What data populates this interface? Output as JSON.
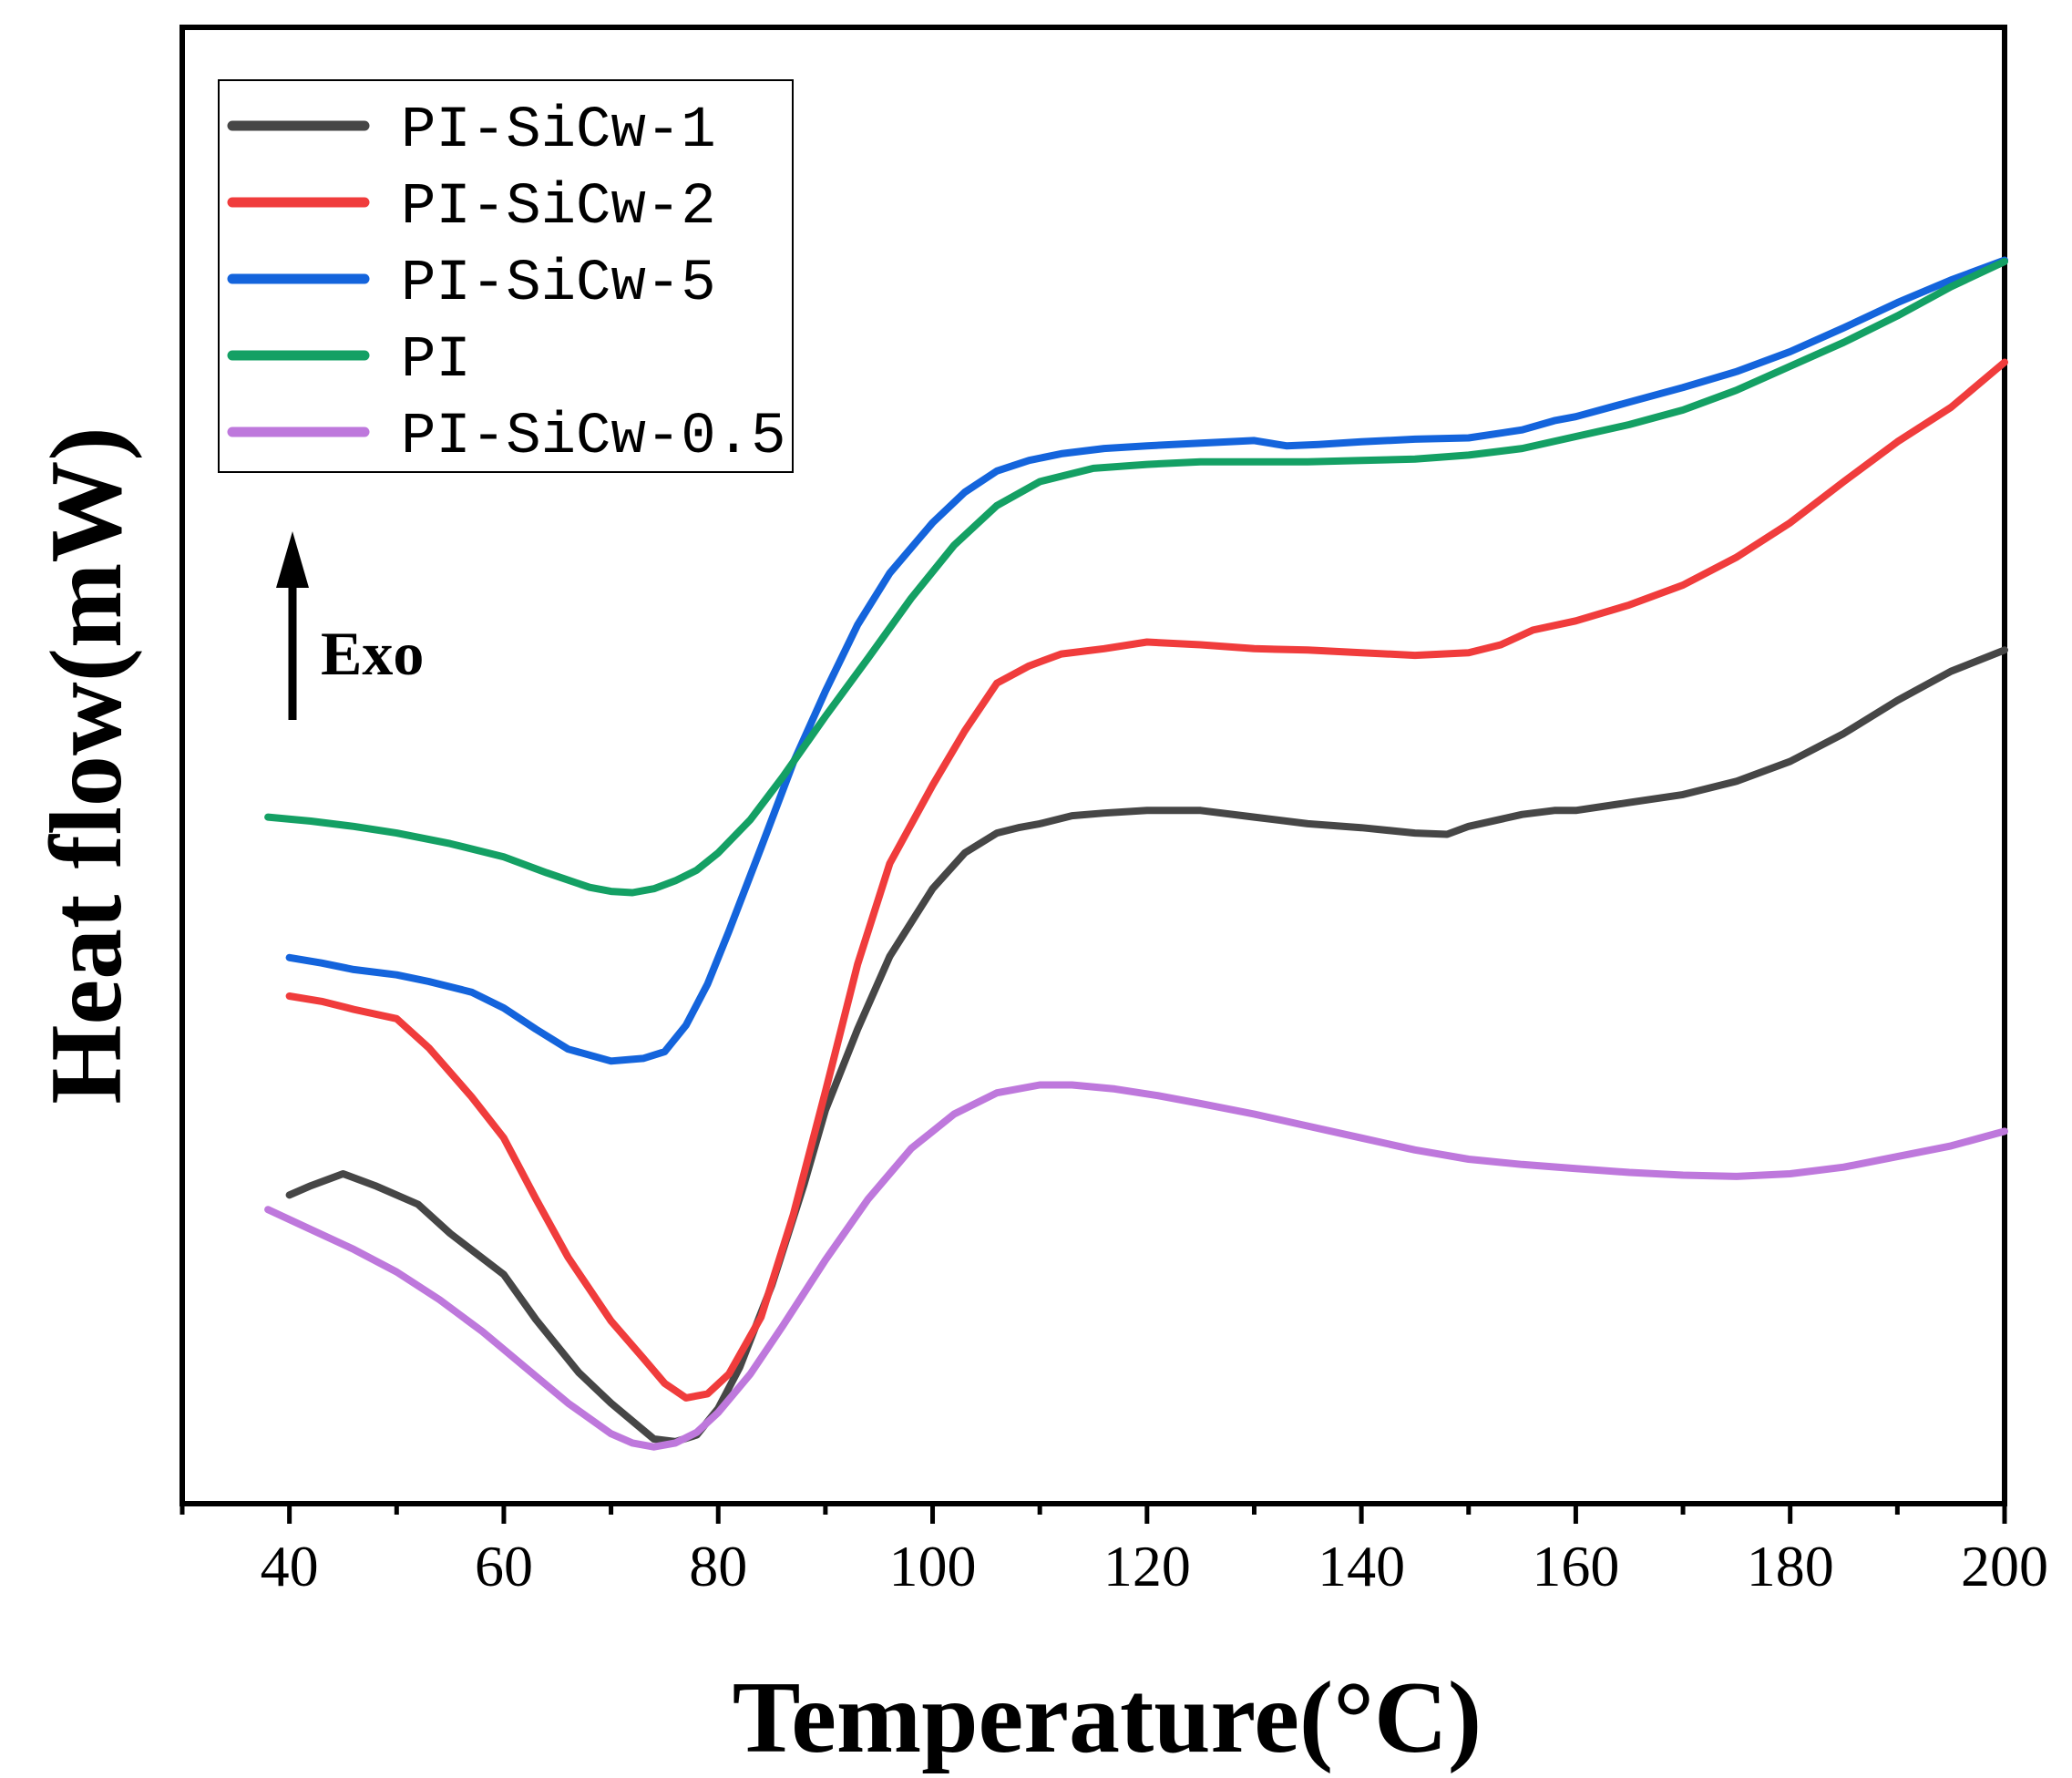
{
  "chart_data": {
    "type": "line",
    "title": "",
    "xlabel": "Temperature(°C)",
    "ylabel": "Heat flow(mW)",
    "xlim": [
      30,
      200
    ],
    "ylim": [
      0,
      100
    ],
    "xticks": [
      40,
      60,
      80,
      100,
      120,
      140,
      160,
      180,
      200
    ],
    "xtick_labels": [
      "40",
      "60",
      "80",
      "100",
      "120",
      "140",
      "160",
      "180",
      "200"
    ],
    "yticks_visible": false,
    "annotation": {
      "text": "Exo",
      "arrow": "up"
    },
    "legend_position": "top-left",
    "series": [
      {
        "name": "PI-SiCw-1",
        "color": "#464646",
        "x": [
          40,
          42,
          45,
          48,
          52,
          55,
          60,
          63,
          67,
          70,
          74,
          76,
          78,
          80,
          82,
          85,
          88,
          90,
          93,
          96,
          100,
          103,
          106,
          108,
          110,
          113,
          116,
          120,
          125,
          130,
          135,
          140,
          145,
          148,
          150,
          155,
          158,
          160,
          165,
          170,
          175,
          180,
          185,
          190,
          195,
          200
        ],
        "y": [
          19.5,
          20.2,
          21.1,
          20.2,
          18.8,
          16.6,
          13.5,
          10.1,
          6.1,
          3.8,
          1.1,
          0.9,
          1.4,
          3.4,
          6.5,
          12.7,
          20.3,
          25.9,
          32.0,
          37.5,
          42.6,
          45.3,
          46.8,
          47.2,
          47.5,
          48.1,
          48.3,
          48.5,
          48.5,
          48.0,
          47.5,
          47.2,
          46.8,
          46.7,
          47.3,
          48.2,
          48.5,
          48.5,
          49.1,
          49.7,
          50.7,
          52.2,
          54.3,
          56.8,
          59.0,
          60.6
        ]
      },
      {
        "name": "PI-SiCw-2",
        "color": "#f03c3c",
        "x": [
          40,
          43,
          46,
          50,
          53,
          57,
          60,
          63,
          66,
          70,
          73,
          75,
          77,
          79,
          81,
          84,
          87,
          90,
          93,
          96,
          100,
          103,
          106,
          109,
          112,
          116,
          120,
          125,
          130,
          135,
          140,
          145,
          150,
          153,
          156,
          160,
          165,
          170,
          175,
          180,
          185,
          190,
          195,
          200
        ],
        "y": [
          34.5,
          34.1,
          33.5,
          32.8,
          30.6,
          26.9,
          23.8,
          19.2,
          14.8,
          10.0,
          7.2,
          5.3,
          4.2,
          4.5,
          6.0,
          10.3,
          18.0,
          27.3,
          36.9,
          44.5,
          50.4,
          54.5,
          58.1,
          59.4,
          60.3,
          60.7,
          61.2,
          61.0,
          60.7,
          60.6,
          60.4,
          60.2,
          60.4,
          61.0,
          62.1,
          62.8,
          64.0,
          65.5,
          67.6,
          70.2,
          73.3,
          76.3,
          78.9,
          82.3
        ]
      },
      {
        "name": "PI-SiCw-5",
        "color": "#1464dc",
        "x": [
          40,
          43,
          46,
          50,
          53,
          57,
          60,
          63,
          66,
          70,
          73,
          75,
          77,
          79,
          81,
          84,
          87,
          90,
          93,
          96,
          100,
          103,
          106,
          109,
          112,
          116,
          120,
          125,
          130,
          133,
          136,
          140,
          145,
          150,
          155,
          158,
          160,
          165,
          170,
          175,
          180,
          185,
          190,
          195,
          200
        ],
        "y": [
          37.4,
          37.0,
          36.5,
          36.1,
          35.6,
          34.8,
          33.6,
          32.0,
          30.5,
          29.6,
          29.8,
          30.3,
          32.3,
          35.4,
          39.4,
          45.7,
          52.1,
          57.5,
          62.5,
          66.4,
          70.2,
          72.5,
          74.1,
          74.9,
          75.4,
          75.8,
          76.0,
          76.2,
          76.4,
          76.0,
          76.1,
          76.3,
          76.5,
          76.6,
          77.2,
          77.9,
          78.2,
          79.3,
          80.4,
          81.6,
          83.1,
          84.9,
          86.8,
          88.5,
          90.0
        ]
      },
      {
        "name": "PI",
        "color": "#14a064",
        "x": [
          38,
          42,
          46,
          50,
          55,
          60,
          64,
          68,
          70,
          72,
          74,
          76,
          78,
          80,
          83,
          86,
          90,
          94,
          98,
          102,
          106,
          110,
          115,
          120,
          125,
          130,
          135,
          140,
          145,
          150,
          155,
          160,
          165,
          170,
          175,
          180,
          185,
          190,
          195,
          200
        ],
        "y": [
          48.0,
          47.7,
          47.3,
          46.8,
          46.0,
          45.0,
          43.8,
          42.7,
          42.4,
          42.3,
          42.6,
          43.2,
          44.0,
          45.3,
          47.8,
          51.0,
          55.6,
          60.0,
          64.5,
          68.5,
          71.5,
          73.3,
          74.3,
          74.6,
          74.8,
          74.8,
          74.8,
          74.9,
          75.0,
          75.3,
          75.8,
          76.7,
          77.6,
          78.7,
          80.2,
          82.0,
          83.8,
          85.8,
          88.0,
          89.9
        ]
      },
      {
        "name": "PI-SiCw-0.5",
        "color": "#be78dc",
        "x": [
          38,
          42,
          46,
          50,
          54,
          58,
          62,
          66,
          70,
          72,
          74,
          76,
          78,
          80,
          83,
          86,
          90,
          94,
          98,
          102,
          106,
          110,
          113,
          117,
          121,
          125,
          130,
          135,
          140,
          145,
          150,
          155,
          160,
          165,
          170,
          175,
          180,
          185,
          190,
          195,
          200
        ],
        "y": [
          18.4,
          16.9,
          15.4,
          13.7,
          11.6,
          9.2,
          6.5,
          3.8,
          1.5,
          0.8,
          0.5,
          0.8,
          1.6,
          3.1,
          6.0,
          9.6,
          14.6,
          19.2,
          23.0,
          25.6,
          27.2,
          27.8,
          27.8,
          27.5,
          27.0,
          26.4,
          25.6,
          24.7,
          23.8,
          22.9,
          22.2,
          21.8,
          21.5,
          21.2,
          21.0,
          20.9,
          21.1,
          21.6,
          22.4,
          23.2,
          24.3
        ]
      }
    ]
  }
}
